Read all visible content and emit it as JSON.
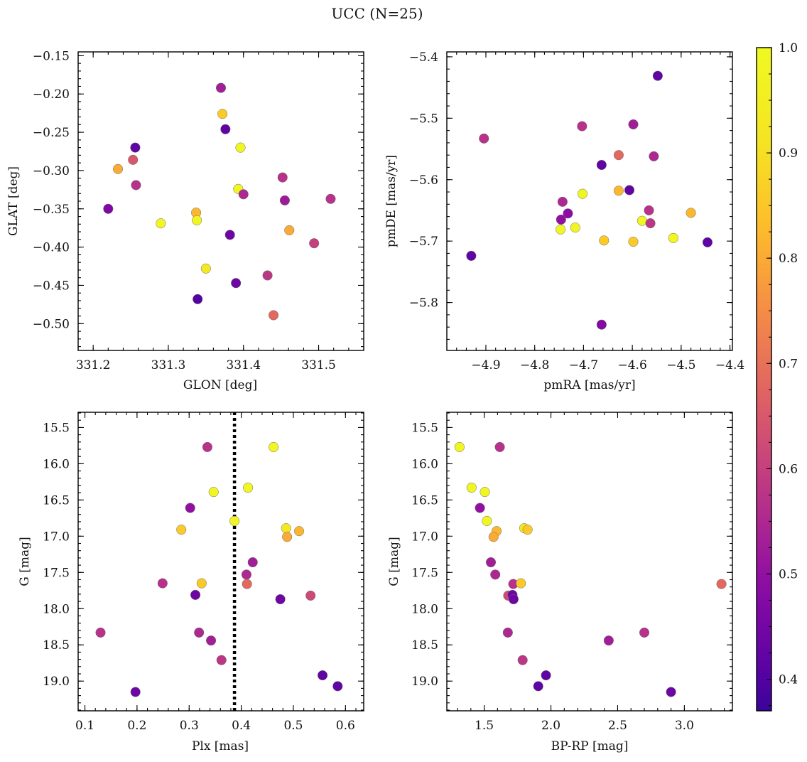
{
  "figure": {
    "title": "UCC (N=25)"
  },
  "colorbar": {
    "colormap": "plasma",
    "range": [
      0.37,
      1.0
    ],
    "ticks": [
      "0.4",
      "0.5",
      "0.6",
      "0.7",
      "0.8",
      "0.9",
      "1.0"
    ],
    "tick_values": [
      0.4,
      0.5,
      0.6,
      0.7,
      0.8,
      0.9,
      1.0
    ]
  },
  "chart_data": [
    {
      "type": "scatter",
      "xlabel": "GLON [deg]",
      "ylabel": "GLAT [deg]",
      "xlim": [
        331.18,
        331.56
      ],
      "ylim": [
        -0.535,
        -0.145
      ],
      "y_inverted": false,
      "xticks": [
        331.2,
        331.3,
        331.4,
        331.5
      ],
      "xtick_labels": [
        "331.2",
        "331.3",
        "331.4",
        "331.5"
      ],
      "yticks": [
        -0.5,
        -0.45,
        -0.4,
        -0.35,
        -0.3,
        -0.25,
        -0.2,
        -0.15
      ],
      "ytick_labels": [
        "−0.50",
        "−0.45",
        "−0.40",
        "−0.35",
        "−0.30",
        "−0.25",
        "−0.20",
        "−0.15"
      ],
      "points": [
        {
          "x": 331.37,
          "y": -0.192,
          "c": 0.53
        },
        {
          "x": 331.372,
          "y": -0.226,
          "c": 0.86
        },
        {
          "x": 331.376,
          "y": -0.246,
          "c": 0.42
        },
        {
          "x": 331.396,
          "y": -0.27,
          "c": 0.98
        },
        {
          "x": 331.256,
          "y": -0.27,
          "c": 0.42
        },
        {
          "x": 331.253,
          "y": -0.286,
          "c": 0.65
        },
        {
          "x": 331.233,
          "y": -0.298,
          "c": 0.8
        },
        {
          "x": 331.257,
          "y": -0.319,
          "c": 0.57
        },
        {
          "x": 331.452,
          "y": -0.309,
          "c": 0.57
        },
        {
          "x": 331.516,
          "y": -0.337,
          "c": 0.57
        },
        {
          "x": 331.393,
          "y": -0.324,
          "c": 0.98
        },
        {
          "x": 331.4,
          "y": -0.331,
          "c": 0.55
        },
        {
          "x": 331.455,
          "y": -0.339,
          "c": 0.52
        },
        {
          "x": 331.22,
          "y": -0.35,
          "c": 0.47
        },
        {
          "x": 331.337,
          "y": -0.355,
          "c": 0.82
        },
        {
          "x": 331.338,
          "y": -0.365,
          "c": 0.98
        },
        {
          "x": 331.29,
          "y": -0.369,
          "c": 0.98
        },
        {
          "x": 331.461,
          "y": -0.378,
          "c": 0.8
        },
        {
          "x": 331.382,
          "y": -0.384,
          "c": 0.44
        },
        {
          "x": 331.494,
          "y": -0.395,
          "c": 0.6
        },
        {
          "x": 331.35,
          "y": -0.428,
          "c": 0.93
        },
        {
          "x": 331.432,
          "y": -0.437,
          "c": 0.58
        },
        {
          "x": 331.39,
          "y": -0.447,
          "c": 0.44
        },
        {
          "x": 331.44,
          "y": -0.489,
          "c": 0.68
        },
        {
          "x": 331.339,
          "y": -0.468,
          "c": 0.4
        }
      ]
    },
    {
      "type": "scatter",
      "xlabel": "pmRA [mas/yr]",
      "ylabel": "pmDE [mas/yr]",
      "xlim": [
        -4.98,
        -4.395
      ],
      "ylim": [
        -5.878,
        -5.392
      ],
      "y_inverted": false,
      "xticks": [
        -4.9,
        -4.8,
        -4.7,
        -4.6,
        -4.5,
        -4.4
      ],
      "xtick_labels": [
        "−4.9",
        "−4.8",
        "−4.7",
        "−4.6",
        "−4.5",
        "−4.4"
      ],
      "yticks": [
        -5.8,
        -5.7,
        -5.6,
        -5.5,
        -5.4
      ],
      "ytick_labels": [
        "−5.8",
        "−5.7",
        "−5.6",
        "−5.5",
        "−5.4"
      ],
      "points": [
        {
          "x": -4.548,
          "y": -5.431,
          "c": 0.42
        },
        {
          "x": -4.904,
          "y": -5.533,
          "c": 0.57
        },
        {
          "x": -4.703,
          "y": -5.513,
          "c": 0.57
        },
        {
          "x": -4.598,
          "y": -5.51,
          "c": 0.53
        },
        {
          "x": -4.628,
          "y": -5.56,
          "c": 0.68
        },
        {
          "x": -4.556,
          "y": -5.562,
          "c": 0.55
        },
        {
          "x": -4.663,
          "y": -5.576,
          "c": 0.42
        },
        {
          "x": -4.606,
          "y": -5.617,
          "c": 0.42
        },
        {
          "x": -4.628,
          "y": -5.618,
          "c": 0.82
        },
        {
          "x": -4.702,
          "y": -5.623,
          "c": 0.98
        },
        {
          "x": -4.743,
          "y": -5.636,
          "c": 0.55
        },
        {
          "x": -4.566,
          "y": -5.65,
          "c": 0.57
        },
        {
          "x": -4.48,
          "y": -5.654,
          "c": 0.82
        },
        {
          "x": -4.732,
          "y": -5.655,
          "c": 0.49
        },
        {
          "x": -4.746,
          "y": -5.665,
          "c": 0.5
        },
        {
          "x": -4.58,
          "y": -5.667,
          "c": 0.98
        },
        {
          "x": -4.563,
          "y": -5.671,
          "c": 0.58
        },
        {
          "x": -4.717,
          "y": -5.678,
          "c": 0.98
        },
        {
          "x": -4.747,
          "y": -5.681,
          "c": 0.98
        },
        {
          "x": -4.516,
          "y": -5.695,
          "c": 0.98
        },
        {
          "x": -4.658,
          "y": -5.699,
          "c": 0.86
        },
        {
          "x": -4.598,
          "y": -5.701,
          "c": 0.86
        },
        {
          "x": -4.446,
          "y": -5.702,
          "c": 0.42
        },
        {
          "x": -4.93,
          "y": -5.724,
          "c": 0.42
        },
        {
          "x": -4.663,
          "y": -5.836,
          "c": 0.48
        }
      ]
    },
    {
      "type": "scatter",
      "xlabel": "Plx [mas]",
      "ylabel": "G [mag]",
      "xlim": [
        0.087,
        0.635
      ],
      "ylim": [
        19.41,
        15.29
      ],
      "y_inverted": true,
      "xticks": [
        0.1,
        0.2,
        0.3,
        0.4,
        0.5,
        0.6
      ],
      "xtick_labels": [
        "0.1",
        "0.2",
        "0.3",
        "0.4",
        "0.5",
        "0.6"
      ],
      "yticks": [
        15.5,
        16.0,
        16.5,
        17.0,
        17.5,
        18.0,
        18.5,
        19.0
      ],
      "ytick_labels": [
        "15.5",
        "16.0",
        "16.5",
        "17.0",
        "17.5",
        "18.0",
        "18.5",
        "19.0"
      ],
      "vline": 0.387,
      "points": [
        {
          "x": 0.335,
          "y": 15.77,
          "c": 0.57
        },
        {
          "x": 0.462,
          "y": 15.77,
          "c": 0.98
        },
        {
          "x": 0.413,
          "y": 16.33,
          "c": 0.98
        },
        {
          "x": 0.347,
          "y": 16.39,
          "c": 0.98
        },
        {
          "x": 0.302,
          "y": 16.61,
          "c": 0.5
        },
        {
          "x": 0.387,
          "y": 16.79,
          "c": 0.98
        },
        {
          "x": 0.285,
          "y": 16.91,
          "c": 0.86
        },
        {
          "x": 0.486,
          "y": 16.89,
          "c": 0.93
        },
        {
          "x": 0.511,
          "y": 16.93,
          "c": 0.82
        },
        {
          "x": 0.488,
          "y": 17.01,
          "c": 0.8
        },
        {
          "x": 0.422,
          "y": 17.36,
          "c": 0.53
        },
        {
          "x": 0.41,
          "y": 17.53,
          "c": 0.55
        },
        {
          "x": 0.249,
          "y": 17.65,
          "c": 0.57
        },
        {
          "x": 0.324,
          "y": 17.65,
          "c": 0.86
        },
        {
          "x": 0.411,
          "y": 17.66,
          "c": 0.68
        },
        {
          "x": 0.312,
          "y": 17.81,
          "c": 0.44
        },
        {
          "x": 0.533,
          "y": 17.82,
          "c": 0.62
        },
        {
          "x": 0.475,
          "y": 17.87,
          "c": 0.44
        },
        {
          "x": 0.13,
          "y": 18.33,
          "c": 0.57
        },
        {
          "x": 0.319,
          "y": 18.33,
          "c": 0.55
        },
        {
          "x": 0.342,
          "y": 18.44,
          "c": 0.53
        },
        {
          "x": 0.362,
          "y": 18.71,
          "c": 0.58
        },
        {
          "x": 0.556,
          "y": 18.92,
          "c": 0.42
        },
        {
          "x": 0.585,
          "y": 19.07,
          "c": 0.42
        },
        {
          "x": 0.197,
          "y": 19.15,
          "c": 0.44
        }
      ]
    },
    {
      "type": "scatter",
      "xlabel": "BP-RP [mag]",
      "ylabel": "G [mag]",
      "xlim": [
        1.22,
        3.36
      ],
      "ylim": [
        19.41,
        15.29
      ],
      "y_inverted": true,
      "xticks": [
        1.5,
        2.0,
        2.5,
        3.0
      ],
      "xtick_labels": [
        "1.5",
        "2.0",
        "2.5",
        "3.0"
      ],
      "yticks": [
        15.5,
        16.0,
        16.5,
        17.0,
        17.5,
        18.0,
        18.5,
        19.0
      ],
      "ytick_labels": [
        "15.5",
        "16.0",
        "16.5",
        "17.0",
        "17.5",
        "18.0",
        "18.5",
        "19.0"
      ],
      "points": [
        {
          "x": 1.315,
          "y": 15.77,
          "c": 0.98
        },
        {
          "x": 1.617,
          "y": 15.77,
          "c": 0.57
        },
        {
          "x": 1.405,
          "y": 16.33,
          "c": 0.98
        },
        {
          "x": 1.505,
          "y": 16.39,
          "c": 0.98
        },
        {
          "x": 1.468,
          "y": 16.61,
          "c": 0.5
        },
        {
          "x": 1.52,
          "y": 16.79,
          "c": 0.98
        },
        {
          "x": 1.593,
          "y": 16.93,
          "c": 0.82
        },
        {
          "x": 1.8,
          "y": 16.89,
          "c": 0.93
        },
        {
          "x": 1.825,
          "y": 16.91,
          "c": 0.86
        },
        {
          "x": 1.57,
          "y": 17.01,
          "c": 0.8
        },
        {
          "x": 1.55,
          "y": 17.36,
          "c": 0.53
        },
        {
          "x": 1.583,
          "y": 17.53,
          "c": 0.55
        },
        {
          "x": 1.718,
          "y": 17.66,
          "c": 0.57
        },
        {
          "x": 1.775,
          "y": 17.65,
          "c": 0.86
        },
        {
          "x": 3.278,
          "y": 17.66,
          "c": 0.68
        },
        {
          "x": 1.68,
          "y": 17.82,
          "c": 0.62
        },
        {
          "x": 1.712,
          "y": 17.81,
          "c": 0.44
        },
        {
          "x": 1.72,
          "y": 17.87,
          "c": 0.44
        },
        {
          "x": 1.677,
          "y": 18.33,
          "c": 0.55
        },
        {
          "x": 2.7,
          "y": 18.33,
          "c": 0.57
        },
        {
          "x": 2.433,
          "y": 18.44,
          "c": 0.53
        },
        {
          "x": 1.788,
          "y": 18.71,
          "c": 0.58
        },
        {
          "x": 1.963,
          "y": 18.92,
          "c": 0.42
        },
        {
          "x": 1.905,
          "y": 19.07,
          "c": 0.42
        },
        {
          "x": 2.9,
          "y": 19.15,
          "c": 0.44
        }
      ]
    }
  ]
}
